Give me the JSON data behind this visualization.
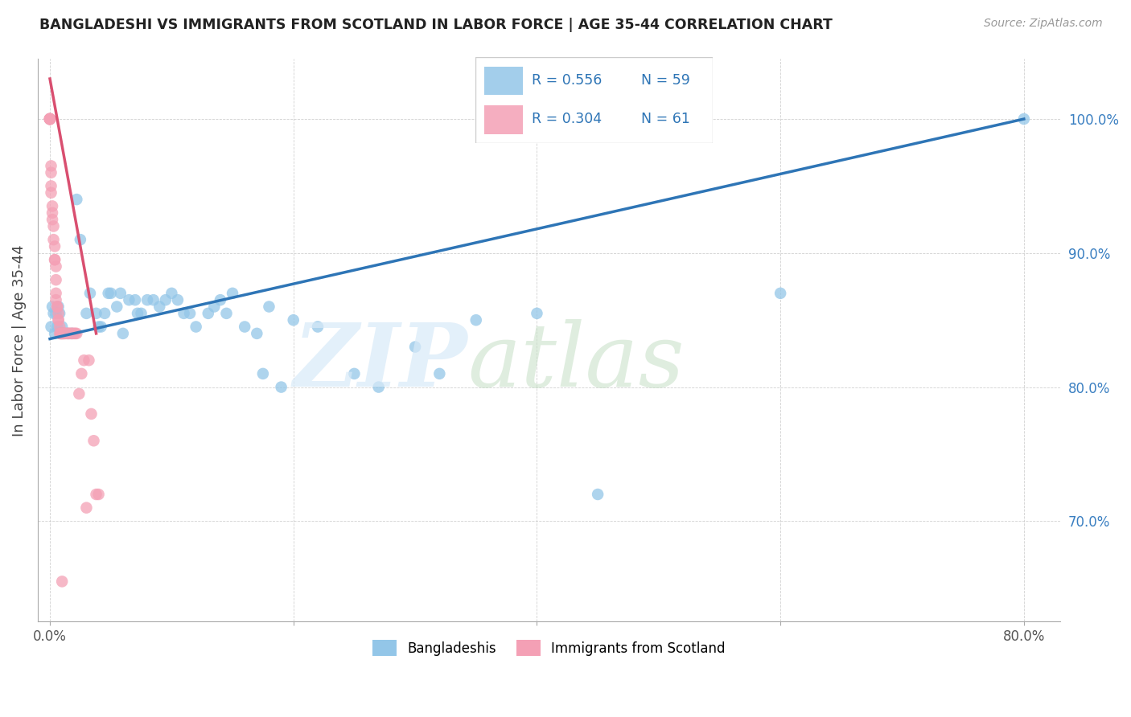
{
  "title": "BANGLADESHI VS IMMIGRANTS FROM SCOTLAND IN LABOR FORCE | AGE 35-44 CORRELATION CHART",
  "source": "Source: ZipAtlas.com",
  "ylabel": "In Labor Force | Age 35-44",
  "xlim": [
    -0.01,
    0.83
  ],
  "ylim": [
    0.625,
    1.045
  ],
  "blue_color": "#93c6e8",
  "pink_color": "#f4a0b5",
  "blue_line_color": "#2e75b6",
  "pink_line_color": "#d94f70",
  "legend_R_blue": "R = 0.556",
  "legend_N_blue": "N = 59",
  "legend_R_pink": "R = 0.304",
  "legend_N_pink": "N = 61",
  "blue_scatter_x": [
    0.001,
    0.002,
    0.003,
    0.004,
    0.005,
    0.006,
    0.007,
    0.008,
    0.009,
    0.01,
    0.015,
    0.018,
    0.022,
    0.025,
    0.03,
    0.033,
    0.038,
    0.04,
    0.042,
    0.045,
    0.048,
    0.05,
    0.055,
    0.058,
    0.06,
    0.065,
    0.07,
    0.072,
    0.075,
    0.08,
    0.085,
    0.09,
    0.095,
    0.1,
    0.105,
    0.11,
    0.115,
    0.12,
    0.13,
    0.135,
    0.14,
    0.145,
    0.15,
    0.16,
    0.17,
    0.175,
    0.18,
    0.19,
    0.2,
    0.22,
    0.25,
    0.27,
    0.3,
    0.32,
    0.35,
    0.4,
    0.45,
    0.6,
    0.8
  ],
  "blue_scatter_y": [
    0.845,
    0.86,
    0.855,
    0.84,
    0.855,
    0.845,
    0.86,
    0.855,
    0.84,
    0.845,
    0.84,
    0.84,
    0.94,
    0.91,
    0.855,
    0.87,
    0.855,
    0.845,
    0.845,
    0.855,
    0.87,
    0.87,
    0.86,
    0.87,
    0.84,
    0.865,
    0.865,
    0.855,
    0.855,
    0.865,
    0.865,
    0.86,
    0.865,
    0.87,
    0.865,
    0.855,
    0.855,
    0.845,
    0.855,
    0.86,
    0.865,
    0.855,
    0.87,
    0.845,
    0.84,
    0.81,
    0.86,
    0.8,
    0.85,
    0.845,
    0.81,
    0.8,
    0.83,
    0.81,
    0.85,
    0.855,
    0.72,
    0.87,
    1.0
  ],
  "pink_scatter_x": [
    0.0,
    0.0,
    0.0,
    0.0,
    0.0,
    0.0,
    0.0,
    0.0,
    0.0,
    0.001,
    0.001,
    0.001,
    0.001,
    0.002,
    0.002,
    0.002,
    0.003,
    0.003,
    0.004,
    0.004,
    0.004,
    0.005,
    0.005,
    0.005,
    0.005,
    0.006,
    0.006,
    0.007,
    0.007,
    0.007,
    0.008,
    0.008,
    0.009,
    0.009,
    0.01,
    0.01,
    0.01,
    0.011,
    0.011,
    0.012,
    0.012,
    0.013,
    0.014,
    0.015,
    0.016,
    0.017,
    0.018,
    0.019,
    0.02,
    0.021,
    0.022,
    0.024,
    0.026,
    0.028,
    0.03,
    0.032,
    0.034,
    0.036,
    0.038,
    0.04,
    0.01
  ],
  "pink_scatter_y": [
    1.0,
    1.0,
    1.0,
    1.0,
    1.0,
    1.0,
    1.0,
    1.0,
    1.0,
    0.965,
    0.96,
    0.95,
    0.945,
    0.935,
    0.93,
    0.925,
    0.92,
    0.91,
    0.905,
    0.895,
    0.895,
    0.89,
    0.88,
    0.87,
    0.865,
    0.86,
    0.86,
    0.855,
    0.85,
    0.85,
    0.845,
    0.84,
    0.84,
    0.84,
    0.84,
    0.84,
    0.84,
    0.84,
    0.84,
    0.84,
    0.84,
    0.84,
    0.84,
    0.84,
    0.84,
    0.84,
    0.84,
    0.84,
    0.84,
    0.84,
    0.84,
    0.795,
    0.81,
    0.82,
    0.71,
    0.82,
    0.78,
    0.76,
    0.72,
    0.72,
    0.655
  ]
}
